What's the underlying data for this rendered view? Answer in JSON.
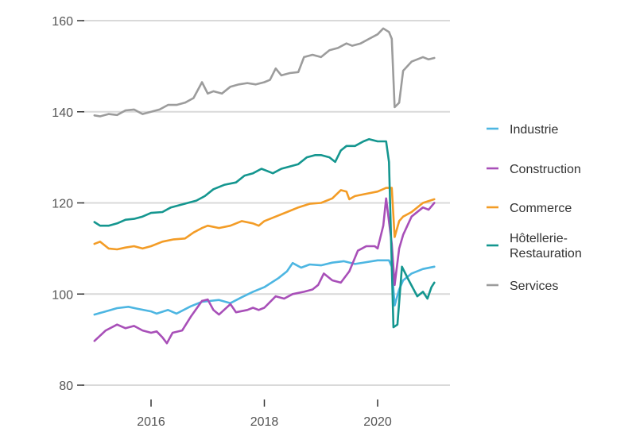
{
  "chart_data": {
    "type": "line",
    "title": "",
    "xlabel": "",
    "ylabel": "",
    "xlim": [
      2014.75,
      2021.25
    ],
    "ylim": [
      80,
      162
    ],
    "y_ticks": [
      80,
      100,
      120,
      140,
      160
    ],
    "x_ticks": [
      2016,
      2018,
      2020
    ],
    "grid": "horizontal",
    "legend_position": "right",
    "series": [
      {
        "name": "Industrie",
        "color": "#4db6e2",
        "points": [
          [
            2015.0,
            95.5
          ],
          [
            2015.2,
            96.2
          ],
          [
            2015.4,
            96.9
          ],
          [
            2015.6,
            97.2
          ],
          [
            2015.75,
            96.8
          ],
          [
            2016.0,
            96.2
          ],
          [
            2016.1,
            95.7
          ],
          [
            2016.3,
            96.5
          ],
          [
            2016.45,
            95.7
          ],
          [
            2016.7,
            97.3
          ],
          [
            2016.9,
            98.3
          ],
          [
            2017.2,
            98.7
          ],
          [
            2017.4,
            98.0
          ],
          [
            2017.6,
            99.3
          ],
          [
            2017.8,
            100.5
          ],
          [
            2018.0,
            101.5
          ],
          [
            2018.25,
            103.5
          ],
          [
            2018.4,
            105.0
          ],
          [
            2018.5,
            106.8
          ],
          [
            2018.65,
            105.8
          ],
          [
            2018.8,
            106.5
          ],
          [
            2019.0,
            106.3
          ],
          [
            2019.2,
            106.9
          ],
          [
            2019.4,
            107.2
          ],
          [
            2019.6,
            106.6
          ],
          [
            2019.8,
            107.0
          ],
          [
            2020.0,
            107.4
          ],
          [
            2020.2,
            107.4
          ],
          [
            2020.25,
            106.0
          ],
          [
            2020.3,
            97.5
          ],
          [
            2020.38,
            101.0
          ],
          [
            2020.45,
            103.0
          ],
          [
            2020.6,
            104.5
          ],
          [
            2020.8,
            105.5
          ],
          [
            2021.0,
            106.0
          ]
        ]
      },
      {
        "name": "Construction",
        "color": "#a84fb8",
        "points": [
          [
            2015.0,
            89.7
          ],
          [
            2015.2,
            92.0
          ],
          [
            2015.4,
            93.3
          ],
          [
            2015.55,
            92.5
          ],
          [
            2015.7,
            93.0
          ],
          [
            2015.85,
            92.0
          ],
          [
            2016.0,
            91.5
          ],
          [
            2016.1,
            91.8
          ],
          [
            2016.2,
            90.5
          ],
          [
            2016.28,
            89.2
          ],
          [
            2016.38,
            91.5
          ],
          [
            2016.55,
            92.0
          ],
          [
            2016.7,
            95.0
          ],
          [
            2016.9,
            98.5
          ],
          [
            2017.0,
            98.8
          ],
          [
            2017.1,
            96.5
          ],
          [
            2017.2,
            95.5
          ],
          [
            2017.4,
            97.8
          ],
          [
            2017.5,
            96.0
          ],
          [
            2017.7,
            96.5
          ],
          [
            2017.8,
            97.0
          ],
          [
            2017.9,
            96.5
          ],
          [
            2018.0,
            97.0
          ],
          [
            2018.2,
            99.5
          ],
          [
            2018.35,
            99.0
          ],
          [
            2018.5,
            100.0
          ],
          [
            2018.7,
            100.5
          ],
          [
            2018.85,
            101.0
          ],
          [
            2018.95,
            102.0
          ],
          [
            2019.05,
            104.5
          ],
          [
            2019.2,
            103.0
          ],
          [
            2019.35,
            102.5
          ],
          [
            2019.5,
            105.0
          ],
          [
            2019.65,
            109.5
          ],
          [
            2019.8,
            110.5
          ],
          [
            2019.95,
            110.5
          ],
          [
            2020.0,
            110.0
          ],
          [
            2020.1,
            115.0
          ],
          [
            2020.15,
            121.0
          ],
          [
            2020.25,
            111.0
          ],
          [
            2020.3,
            102.0
          ],
          [
            2020.38,
            110.0
          ],
          [
            2020.45,
            113.0
          ],
          [
            2020.6,
            117.0
          ],
          [
            2020.8,
            119.0
          ],
          [
            2020.9,
            118.5
          ],
          [
            2021.0,
            120.0
          ]
        ]
      },
      {
        "name": "Commerce",
        "color": "#f39c26",
        "points": [
          [
            2015.0,
            111.0
          ],
          [
            2015.1,
            111.5
          ],
          [
            2015.25,
            110.0
          ],
          [
            2015.4,
            109.8
          ],
          [
            2015.55,
            110.2
          ],
          [
            2015.7,
            110.5
          ],
          [
            2015.85,
            110.0
          ],
          [
            2016.0,
            110.5
          ],
          [
            2016.2,
            111.5
          ],
          [
            2016.4,
            112.0
          ],
          [
            2016.6,
            112.2
          ],
          [
            2016.75,
            113.5
          ],
          [
            2016.9,
            114.5
          ],
          [
            2017.0,
            115.0
          ],
          [
            2017.2,
            114.5
          ],
          [
            2017.4,
            115.0
          ],
          [
            2017.6,
            116.0
          ],
          [
            2017.8,
            115.5
          ],
          [
            2017.9,
            115.0
          ],
          [
            2018.0,
            116.0
          ],
          [
            2018.2,
            117.0
          ],
          [
            2018.4,
            118.0
          ],
          [
            2018.6,
            119.0
          ],
          [
            2018.8,
            119.8
          ],
          [
            2019.0,
            120.0
          ],
          [
            2019.2,
            121.0
          ],
          [
            2019.35,
            122.8
          ],
          [
            2019.45,
            122.5
          ],
          [
            2019.5,
            120.8
          ],
          [
            2019.6,
            121.5
          ],
          [
            2019.8,
            122.0
          ],
          [
            2020.0,
            122.5
          ],
          [
            2020.15,
            123.3
          ],
          [
            2020.25,
            123.3
          ],
          [
            2020.3,
            112.5
          ],
          [
            2020.38,
            116.0
          ],
          [
            2020.45,
            117.0
          ],
          [
            2020.6,
            118.0
          ],
          [
            2020.8,
            120.0
          ],
          [
            2021.0,
            120.8
          ]
        ]
      },
      {
        "name": "Hôtellerie-Restauration",
        "color": "#14968f",
        "points": [
          [
            2015.0,
            115.8
          ],
          [
            2015.1,
            115.0
          ],
          [
            2015.25,
            115.0
          ],
          [
            2015.4,
            115.5
          ],
          [
            2015.55,
            116.3
          ],
          [
            2015.7,
            116.5
          ],
          [
            2015.85,
            117.0
          ],
          [
            2016.0,
            117.8
          ],
          [
            2016.2,
            118.0
          ],
          [
            2016.35,
            119.0
          ],
          [
            2016.5,
            119.5
          ],
          [
            2016.65,
            120.0
          ],
          [
            2016.8,
            120.5
          ],
          [
            2016.95,
            121.5
          ],
          [
            2017.1,
            123.0
          ],
          [
            2017.3,
            124.0
          ],
          [
            2017.5,
            124.5
          ],
          [
            2017.65,
            126.0
          ],
          [
            2017.8,
            126.5
          ],
          [
            2017.95,
            127.5
          ],
          [
            2018.05,
            127.0
          ],
          [
            2018.15,
            126.5
          ],
          [
            2018.3,
            127.5
          ],
          [
            2018.45,
            128.0
          ],
          [
            2018.6,
            128.5
          ],
          [
            2018.75,
            130.0
          ],
          [
            2018.9,
            130.5
          ],
          [
            2019.0,
            130.5
          ],
          [
            2019.15,
            130.0
          ],
          [
            2019.25,
            129.0
          ],
          [
            2019.35,
            131.5
          ],
          [
            2019.45,
            132.5
          ],
          [
            2019.6,
            132.5
          ],
          [
            2019.75,
            133.5
          ],
          [
            2019.85,
            134.0
          ],
          [
            2020.0,
            133.5
          ],
          [
            2020.15,
            133.5
          ],
          [
            2020.2,
            129.0
          ],
          [
            2020.28,
            92.7
          ],
          [
            2020.35,
            93.3
          ],
          [
            2020.43,
            106.0
          ],
          [
            2020.55,
            103.0
          ],
          [
            2020.7,
            99.5
          ],
          [
            2020.8,
            100.5
          ],
          [
            2020.88,
            99.0
          ],
          [
            2020.95,
            101.5
          ],
          [
            2021.0,
            102.5
          ]
        ]
      },
      {
        "name": "Services",
        "color": "#9c9c9c",
        "points": [
          [
            2015.0,
            139.2
          ],
          [
            2015.1,
            139.0
          ],
          [
            2015.25,
            139.5
          ],
          [
            2015.4,
            139.3
          ],
          [
            2015.55,
            140.3
          ],
          [
            2015.7,
            140.5
          ],
          [
            2015.85,
            139.5
          ],
          [
            2016.0,
            140.0
          ],
          [
            2016.15,
            140.5
          ],
          [
            2016.3,
            141.5
          ],
          [
            2016.45,
            141.5
          ],
          [
            2016.6,
            142.0
          ],
          [
            2016.75,
            143.0
          ],
          [
            2016.9,
            146.5
          ],
          [
            2017.0,
            144.0
          ],
          [
            2017.1,
            144.5
          ],
          [
            2017.25,
            144.0
          ],
          [
            2017.4,
            145.5
          ],
          [
            2017.55,
            146.0
          ],
          [
            2017.7,
            146.3
          ],
          [
            2017.85,
            146.0
          ],
          [
            2018.0,
            146.5
          ],
          [
            2018.1,
            147.0
          ],
          [
            2018.2,
            149.5
          ],
          [
            2018.3,
            148.0
          ],
          [
            2018.45,
            148.5
          ],
          [
            2018.6,
            148.7
          ],
          [
            2018.7,
            152.0
          ],
          [
            2018.85,
            152.5
          ],
          [
            2019.0,
            152.0
          ],
          [
            2019.15,
            153.5
          ],
          [
            2019.3,
            154.0
          ],
          [
            2019.45,
            155.0
          ],
          [
            2019.55,
            154.5
          ],
          [
            2019.7,
            155.0
          ],
          [
            2019.85,
            156.0
          ],
          [
            2020.0,
            157.0
          ],
          [
            2020.1,
            158.3
          ],
          [
            2020.2,
            157.5
          ],
          [
            2020.25,
            156.0
          ],
          [
            2020.3,
            141.0
          ],
          [
            2020.38,
            142.0
          ],
          [
            2020.45,
            149.0
          ],
          [
            2020.6,
            151.0
          ],
          [
            2020.8,
            152.0
          ],
          [
            2020.9,
            151.5
          ],
          [
            2021.0,
            151.8
          ]
        ]
      }
    ]
  }
}
